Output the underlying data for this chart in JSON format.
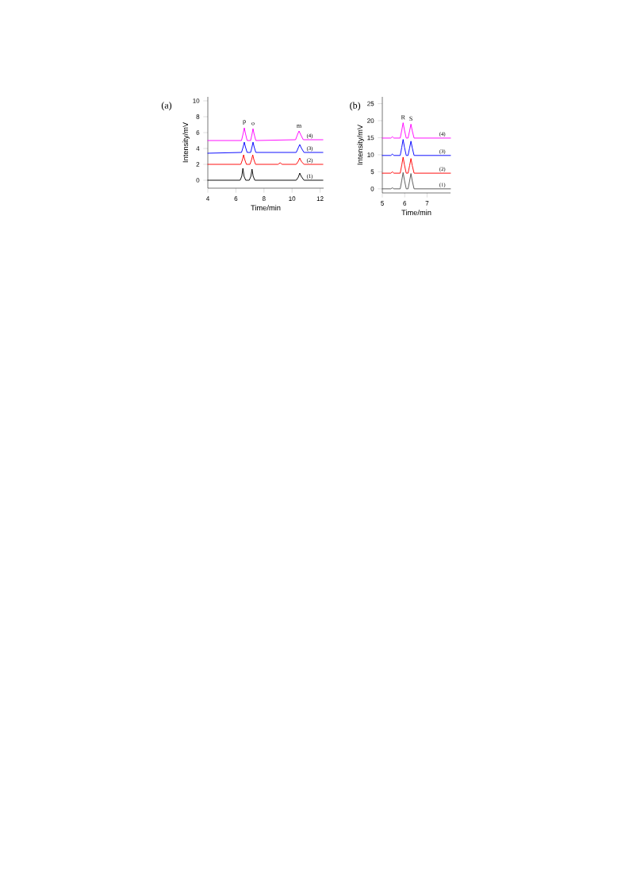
{
  "chart_data": [
    {
      "type": "line",
      "xlabel": "Time/min",
      "ylabel": "Intensity/mV",
      "xlim": [
        4,
        12.25
      ],
      "ylim": [
        -1,
        10.5
      ],
      "xticks": [
        4,
        6,
        8,
        10,
        12
      ],
      "yticks": [
        0,
        2,
        4,
        6,
        8,
        10
      ],
      "annotations": [
        "(a)",
        {
          "text": "p",
          "x": 6.6,
          "y": 6.6
        },
        {
          "text": "o",
          "x": 7.22,
          "y": 6.5
        },
        {
          "text": "m",
          "x": 10.5,
          "y": 6.2
        }
      ],
      "series": [
        {
          "name": "(1)",
          "color": "#000000",
          "x": [
            4,
            6.3,
            6.42,
            6.5,
            6.58,
            6.7,
            6.95,
            7.07,
            7.15,
            7.23,
            7.35,
            10.3,
            10.45,
            10.55,
            10.65,
            10.85,
            12.2
          ],
          "values": [
            0,
            0,
            0.5,
            1.5,
            0.5,
            0,
            0,
            0.5,
            1.4,
            0.5,
            0,
            0,
            0.4,
            0.9,
            0.5,
            0,
            0
          ]
        },
        {
          "name": "(2)",
          "color": "#ff0000",
          "x": [
            4,
            6.35,
            6.47,
            6.55,
            6.63,
            6.75,
            7.0,
            7.12,
            7.2,
            7.28,
            7.4,
            9.0,
            9.15,
            9.3,
            10.3,
            10.45,
            10.55,
            10.65,
            10.85,
            12.2
          ],
          "values": [
            2,
            2,
            2.6,
            3.2,
            2.6,
            2,
            2,
            2.6,
            3.2,
            2.6,
            2,
            2,
            2.2,
            2,
            2,
            2.4,
            2.8,
            2.4,
            2,
            2
          ]
        },
        {
          "name": "(3)",
          "color": "#0000ff",
          "x": [
            4,
            6.4,
            6.52,
            6.6,
            6.68,
            6.8,
            7.05,
            7.15,
            7.22,
            7.3,
            7.42,
            10.3,
            10.45,
            10.55,
            10.65,
            10.85,
            12.2
          ],
          "values": [
            3.4,
            3.5,
            4.2,
            4.8,
            4.2,
            3.5,
            3.5,
            4.2,
            4.8,
            4.2,
            3.5,
            3.5,
            4.1,
            4.5,
            4.1,
            3.5,
            3.5
          ]
        },
        {
          "name": "(4)",
          "color": "#ff00ff",
          "x": [
            4,
            6.4,
            6.52,
            6.6,
            6.68,
            6.8,
            7.05,
            7.15,
            7.22,
            7.3,
            7.42,
            10.25,
            10.4,
            10.5,
            10.6,
            10.8,
            12.2
          ],
          "values": [
            5,
            5.0,
            5.9,
            6.6,
            5.9,
            5.0,
            5.0,
            5.8,
            6.5,
            5.8,
            5.0,
            5.1,
            5.8,
            6.2,
            5.8,
            5.1,
            5.1
          ]
        }
      ]
    },
    {
      "type": "line",
      "xlabel": "Time/min",
      "ylabel": "Intensity/mV",
      "xlim": [
        5,
        8.05
      ],
      "ylim": [
        -1.2,
        27
      ],
      "xticks": [
        5,
        6,
        7
      ],
      "yticks": [
        0,
        5,
        10,
        15,
        20,
        25
      ],
      "annotations": [
        "(b)",
        {
          "text": "R",
          "x": 5.93,
          "y": 19.4
        },
        {
          "text": "S",
          "x": 6.28,
          "y": 19.0
        }
      ],
      "series": [
        {
          "name": "(1)",
          "color": "#555555",
          "x": [
            5,
            5.38,
            5.45,
            5.52,
            5.8,
            5.87,
            5.93,
            5.99,
            6.07,
            6.15,
            6.22,
            6.28,
            6.34,
            6.42,
            8.05
          ],
          "values": [
            0,
            0,
            0.3,
            0,
            0,
            2.5,
            4.8,
            2.5,
            0,
            0,
            2.3,
            4.5,
            2.3,
            0,
            0
          ]
        },
        {
          "name": "(2)",
          "color": "#ff0000",
          "x": [
            5,
            5.38,
            5.45,
            5.52,
            5.8,
            5.87,
            5.93,
            5.99,
            6.07,
            6.15,
            6.22,
            6.28,
            6.34,
            6.42,
            8.05
          ],
          "values": [
            4.6,
            4.6,
            5.0,
            4.6,
            4.6,
            7,
            9.3,
            7,
            4.6,
            4.6,
            6.8,
            8.9,
            6.8,
            4.6,
            4.6
          ]
        },
        {
          "name": "(3)",
          "color": "#0000ff",
          "x": [
            5,
            5.38,
            5.45,
            5.52,
            5.8,
            5.87,
            5.93,
            5.99,
            6.07,
            6.15,
            6.22,
            6.28,
            6.34,
            6.42,
            8.05
          ],
          "values": [
            9.8,
            9.8,
            10.2,
            9.8,
            9.8,
            12.2,
            14.5,
            12.2,
            9.8,
            9.8,
            12,
            14.0,
            12,
            9.8,
            9.8
          ]
        },
        {
          "name": "(4)",
          "color": "#ff00ff",
          "x": [
            5,
            5.38,
            5.45,
            5.52,
            5.8,
            5.87,
            5.93,
            5.99,
            6.07,
            6.15,
            6.22,
            6.28,
            6.34,
            6.42,
            8.05
          ],
          "values": [
            14.9,
            14.9,
            15.3,
            14.9,
            14.9,
            17.2,
            19.4,
            17.2,
            14.9,
            14.9,
            17,
            19.0,
            17,
            14.9,
            14.9
          ]
        }
      ]
    }
  ]
}
